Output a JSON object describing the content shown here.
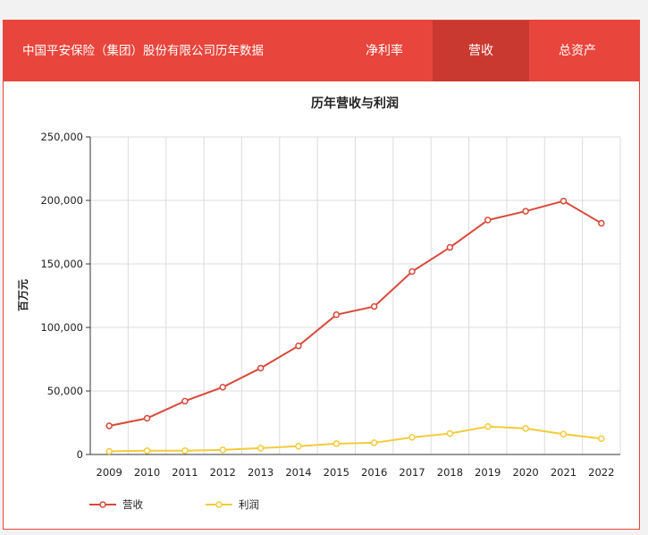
{
  "header": {
    "title": "中国平安保险（集团）股份有限公司历年数据",
    "tabs": [
      {
        "label": "净利率",
        "active": false
      },
      {
        "label": "营收",
        "active": true
      },
      {
        "label": "总资产",
        "active": false
      }
    ]
  },
  "colors": {
    "brand": "#e8453c",
    "tab_active": "#c9392f",
    "revenue": "#d9493a",
    "profit": "#f2cb3c"
  },
  "chart_data": {
    "type": "line",
    "title": "历年营收与利润",
    "xlabel": "",
    "ylabel": "百万元",
    "categories": [
      "2009",
      "2010",
      "2011",
      "2012",
      "2013",
      "2014",
      "2015",
      "2016",
      "2017",
      "2018",
      "2019",
      "2020",
      "2021",
      "2022"
    ],
    "ylim": [
      0,
      250000
    ],
    "yticks": [
      0,
      50000,
      100000,
      150000,
      200000,
      250000
    ],
    "ytick_labels": [
      "0",
      "50,000",
      "100,000",
      "150,000",
      "200,000",
      "250,000"
    ],
    "grid": true,
    "legend_position": "bottom-left",
    "series": [
      {
        "name": "营收",
        "color": "#d9493a",
        "values": [
          22500,
          28500,
          42000,
          53000,
          68000,
          85500,
          110000,
          116500,
          144000,
          163000,
          184500,
          191500,
          199500,
          182000
        ]
      },
      {
        "name": "利润",
        "color": "#f2cb3c",
        "values": [
          2500,
          3000,
          3000,
          3600,
          5000,
          6500,
          8500,
          9200,
          13500,
          16500,
          22000,
          20500,
          16000,
          12500
        ]
      }
    ]
  }
}
